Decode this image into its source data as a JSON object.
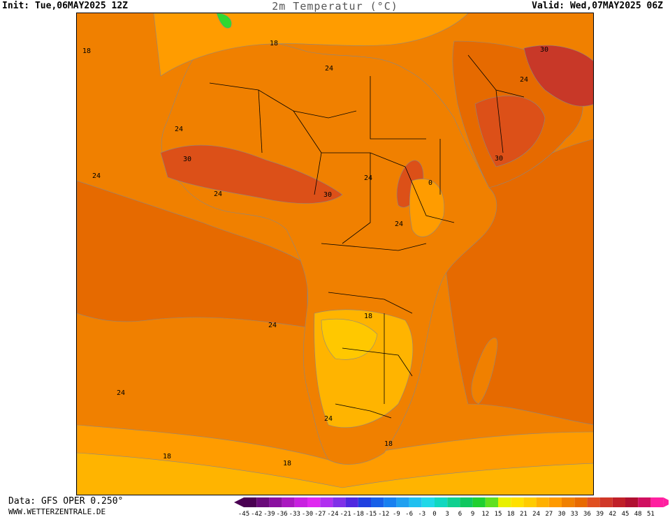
{
  "header": {
    "init": "Init: Tue,06MAY2025 12Z",
    "title": "2m Temperatur (°C)",
    "valid": "Valid: Wed,07MAY2025 06Z"
  },
  "footer": {
    "source": "Data: GFS OPER 0.250°",
    "website": "WWW.WETTERZENTRALE.DE"
  },
  "legend": {
    "ticks": [
      "-45",
      "-42",
      "-39",
      "-36",
      "-33",
      "-30",
      "-27",
      "-24",
      "-21",
      "-18",
      "-15",
      "-12",
      "-9",
      "-6",
      "-3",
      "0",
      "3",
      "6",
      "9",
      "12",
      "15",
      "18",
      "21",
      "24",
      "27",
      "30",
      "33",
      "36",
      "39",
      "42",
      "45",
      "48",
      "51"
    ],
    "colors": [
      "#4a0052",
      "#6a0a7a",
      "#8a10a0",
      "#aa18c0",
      "#c820e0",
      "#e028f0",
      "#b030f0",
      "#8030e8",
      "#5028e0",
      "#2040e0",
      "#1860e8",
      "#1880f0",
      "#20a0f0",
      "#20c0f0",
      "#20d8e8",
      "#10d8c0",
      "#10d090",
      "#10c860",
      "#20d030",
      "#60e020",
      "#e8f000",
      "#ffe000",
      "#ffcc00",
      "#ffb000",
      "#ff9a00",
      "#f08000",
      "#e86a00",
      "#e05020",
      "#d03828",
      "#c02028",
      "#b01030",
      "#d01060",
      "#ff20a0"
    ]
  },
  "map": {
    "contour_labels": [
      "18",
      "18",
      "24",
      "24",
      "30",
      "24",
      "24",
      "30",
      "24",
      "24",
      "30",
      "24",
      "30",
      "0",
      "24",
      "18",
      "24",
      "24",
      "18",
      "18",
      "18"
    ],
    "colors": {
      "t12": "#ffe000",
      "t15": "#ffc800",
      "t18": "#ffb400",
      "t21": "#ff9c00",
      "t24": "#f08000",
      "t27": "#e66a00",
      "t30": "#dc5018",
      "t33": "#c83828",
      "t36": "#b42030",
      "green": "#30d830"
    }
  }
}
